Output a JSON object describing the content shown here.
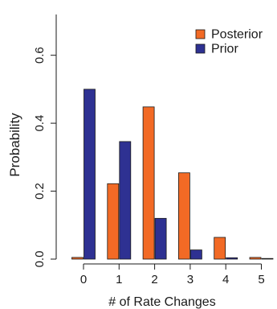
{
  "chart_data": {
    "type": "bar",
    "categories": [
      "0",
      "1",
      "2",
      "3",
      "4",
      "5"
    ],
    "series": [
      {
        "name": "Posterior",
        "color": "#F26A25",
        "values": [
          0.005,
          0.222,
          0.448,
          0.254,
          0.064,
          0.005
        ]
      },
      {
        "name": "Prior",
        "color": "#2E3192",
        "values": [
          0.5,
          0.346,
          0.12,
          0.027,
          0.004,
          0.001
        ]
      }
    ],
    "xlabel": "# of Rate Changes",
    "ylabel": "Probability",
    "yticks": [
      0.0,
      0.2,
      0.4,
      0.6
    ],
    "ytick_labels": [
      "0.0",
      "0.2",
      "0.4",
      "0.6"
    ],
    "ylim": [
      0,
      0.72
    ],
    "legend_position": "top-right",
    "grid": false
  }
}
